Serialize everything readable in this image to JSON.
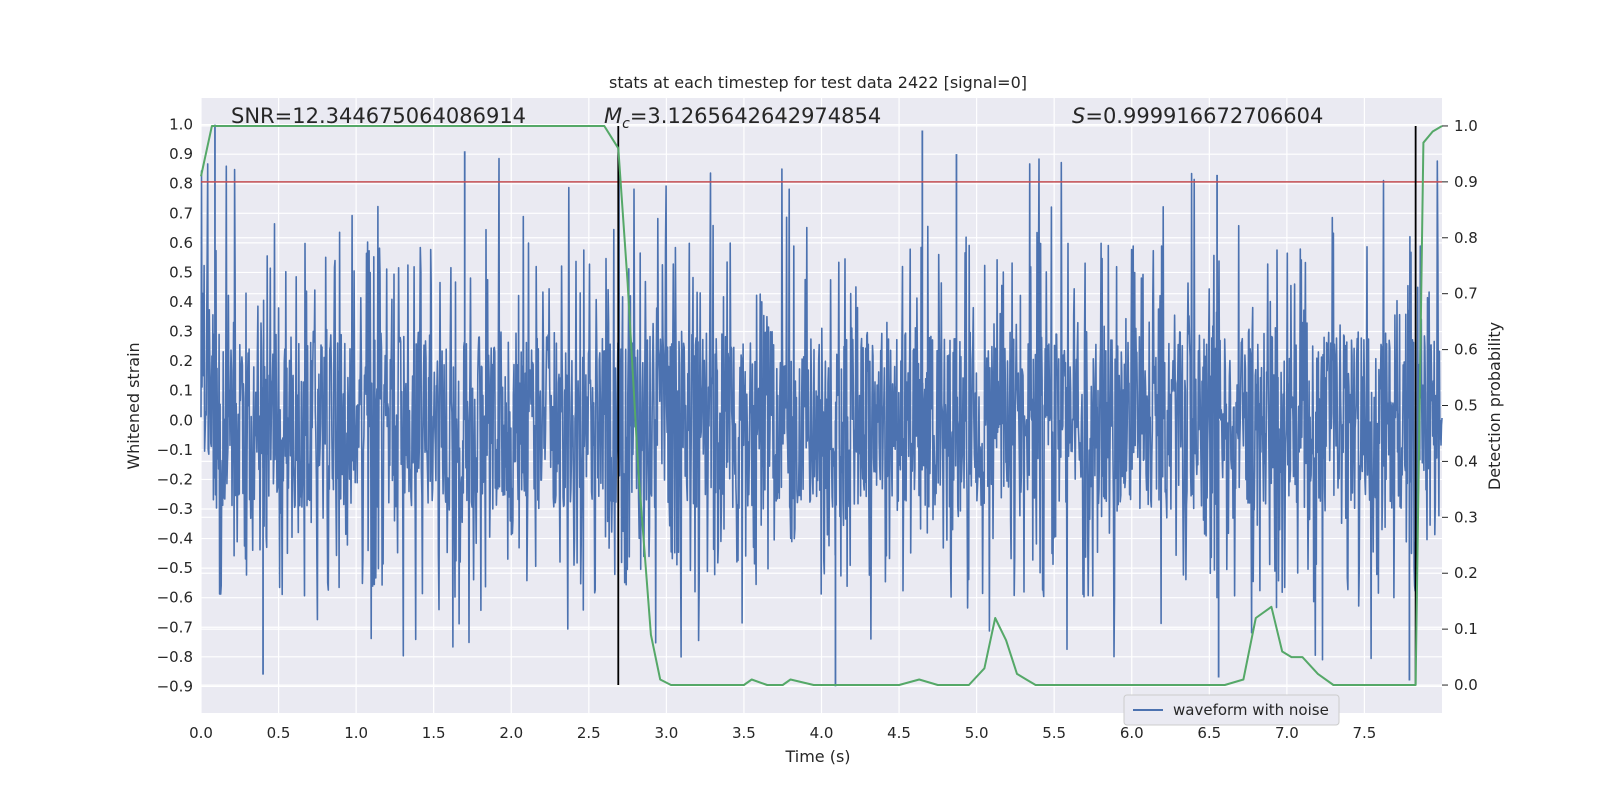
{
  "chart_data": {
    "type": "line",
    "title": "stats at each timestep for test data 2422 [signal=0]",
    "xlabel": "Time (s)",
    "ylabel_left": "Whitened strain",
    "ylabel_right": "Detection probability",
    "xlim": [
      0.0,
      8.0
    ],
    "ylim_left": [
      -0.99,
      1.09
    ],
    "ylim_right": [
      -0.05,
      1.05
    ],
    "grid": true,
    "x_ticks": [
      "0.0",
      "0.5",
      "1.0",
      "1.5",
      "2.0",
      "2.5",
      "3.0",
      "3.5",
      "4.0",
      "4.5",
      "5.0",
      "5.5",
      "6.0",
      "6.5",
      "7.0",
      "7.5"
    ],
    "x_tick_values": [
      0.0,
      0.5,
      1.0,
      1.5,
      2.0,
      2.5,
      3.0,
      3.5,
      4.0,
      4.5,
      5.0,
      5.5,
      6.0,
      6.5,
      7.0,
      7.5
    ],
    "y_left_ticks": [
      "1.0",
      "0.9",
      "0.8",
      "0.7",
      "0.6",
      "0.5",
      "0.4",
      "0.3",
      "0.2",
      "0.1",
      "0.0",
      "−0.1",
      "−0.2",
      "−0.3",
      "−0.4",
      "−0.5",
      "−0.6",
      "−0.7",
      "−0.8",
      "−0.9"
    ],
    "y_left_tick_values": [
      1.0,
      0.9,
      0.8,
      0.7,
      0.6,
      0.5,
      0.4,
      0.3,
      0.2,
      0.1,
      0.0,
      -0.1,
      -0.2,
      -0.3,
      -0.4,
      -0.5,
      -0.6,
      -0.7,
      -0.8,
      -0.9
    ],
    "y_right_ticks": [
      "1.0",
      "0.9",
      "0.8",
      "0.7",
      "0.6",
      "0.5",
      "0.4",
      "0.3",
      "0.2",
      "0.1",
      "0.0"
    ],
    "y_right_tick_values": [
      1.0,
      0.9,
      0.8,
      0.7,
      0.6,
      0.5,
      0.4,
      0.3,
      0.2,
      0.1,
      0.0
    ],
    "annotations": {
      "snr": "SNR=12.344675064086914",
      "mc_symbol": "M",
      "mc_sub": "c",
      "mc_value": "=3.1265642642974854",
      "s_symbol": "S",
      "s_value": "=0.999916672706604"
    },
    "waveform": {
      "name": "waveform with noise",
      "color": "#4c72b0",
      "typical_envelope": [
        -0.3,
        0.3
      ],
      "extreme_range": [
        -0.9,
        1.0
      ],
      "notable_peaks": [
        {
          "x": 0.09,
          "y": 1.0
        },
        {
          "x": 1.7,
          "y": 0.91
        },
        {
          "x": 4.65,
          "y": 0.98
        },
        {
          "x": 4.87,
          "y": 0.9
        },
        {
          "x": 6.55,
          "y": 0.83
        }
      ],
      "notable_troughs": [
        {
          "x": 0.4,
          "y": -0.86
        },
        {
          "x": 4.09,
          "y": -0.9
        },
        {
          "x": 6.56,
          "y": -0.87
        },
        {
          "x": 7.79,
          "y": -0.88
        }
      ]
    },
    "threshold": {
      "value_right": 0.9,
      "color": "#c44e52"
    },
    "detection_probability": {
      "color": "#55a868",
      "x": [
        0.0,
        0.07,
        0.2,
        0.5,
        1.0,
        1.5,
        2.0,
        2.4,
        2.6,
        2.69,
        2.75,
        2.82,
        2.9,
        2.96,
        3.03,
        3.1,
        3.3,
        3.5,
        3.55,
        3.65,
        3.75,
        3.8,
        3.95,
        4.1,
        4.3,
        4.5,
        4.63,
        4.75,
        4.85,
        4.95,
        5.05,
        5.12,
        5.19,
        5.26,
        5.32,
        5.38,
        5.5,
        5.8,
        6.2,
        6.6,
        6.72,
        6.8,
        6.9,
        6.97,
        7.03,
        7.1,
        7.2,
        7.3,
        7.5,
        7.7,
        7.83,
        7.88,
        7.94,
        8.0
      ],
      "y": [
        0.91,
        1.0,
        1.0,
        1.0,
        1.0,
        1.0,
        1.0,
        1.0,
        1.0,
        0.96,
        0.72,
        0.38,
        0.09,
        0.01,
        0.0,
        0.0,
        0.0,
        0.0,
        0.01,
        0.0,
        0.0,
        0.01,
        0.0,
        0.0,
        0.0,
        0.0,
        0.01,
        0.0,
        0.0,
        0.0,
        0.03,
        0.12,
        0.08,
        0.02,
        0.01,
        0.0,
        0.0,
        0.0,
        0.0,
        0.0,
        0.01,
        0.12,
        0.14,
        0.06,
        0.05,
        0.05,
        0.02,
        0.0,
        0.0,
        0.0,
        0.0,
        0.97,
        0.99,
        1.0
      ]
    },
    "vertical_markers": [
      2.69,
      7.83
    ],
    "legend": {
      "label": "waveform with noise",
      "placement": "lower-right"
    }
  }
}
